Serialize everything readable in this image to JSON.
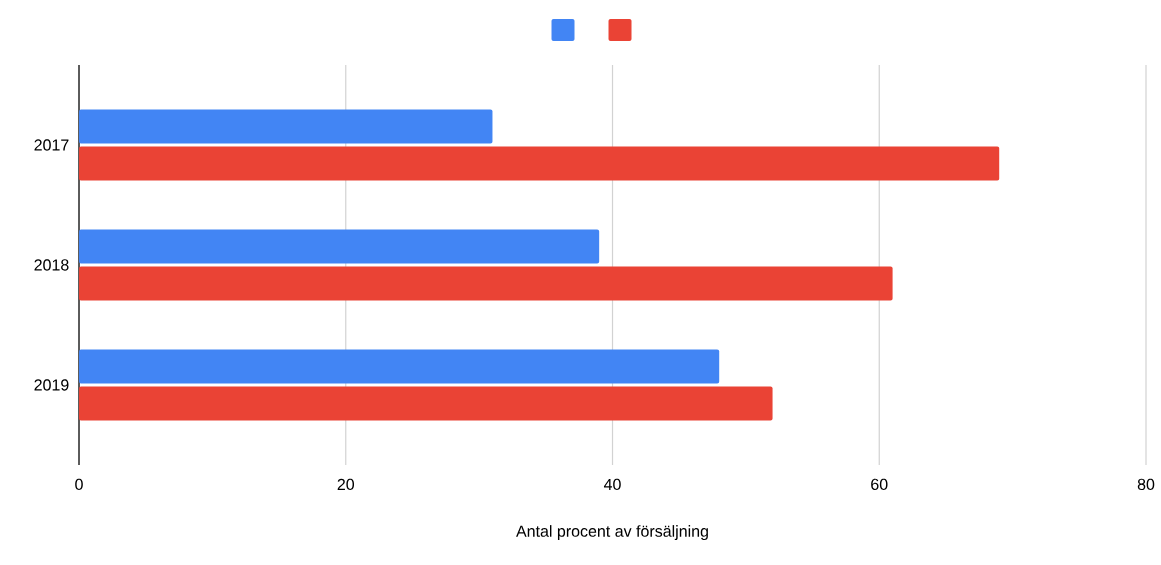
{
  "chart_data": {
    "type": "bar",
    "orientation": "horizontal",
    "xlabel": "Antal procent av försäljning",
    "categories": [
      "2017",
      "2018",
      "2019"
    ],
    "series": [
      {
        "color": "#4285f4",
        "values": [
          31,
          39,
          48
        ]
      },
      {
        "color": "#ea4335",
        "values": [
          69,
          61,
          52
        ]
      }
    ],
    "xlim": [
      0,
      80
    ],
    "xticks": [
      0,
      20,
      40,
      60,
      80
    ],
    "grid": "x"
  }
}
